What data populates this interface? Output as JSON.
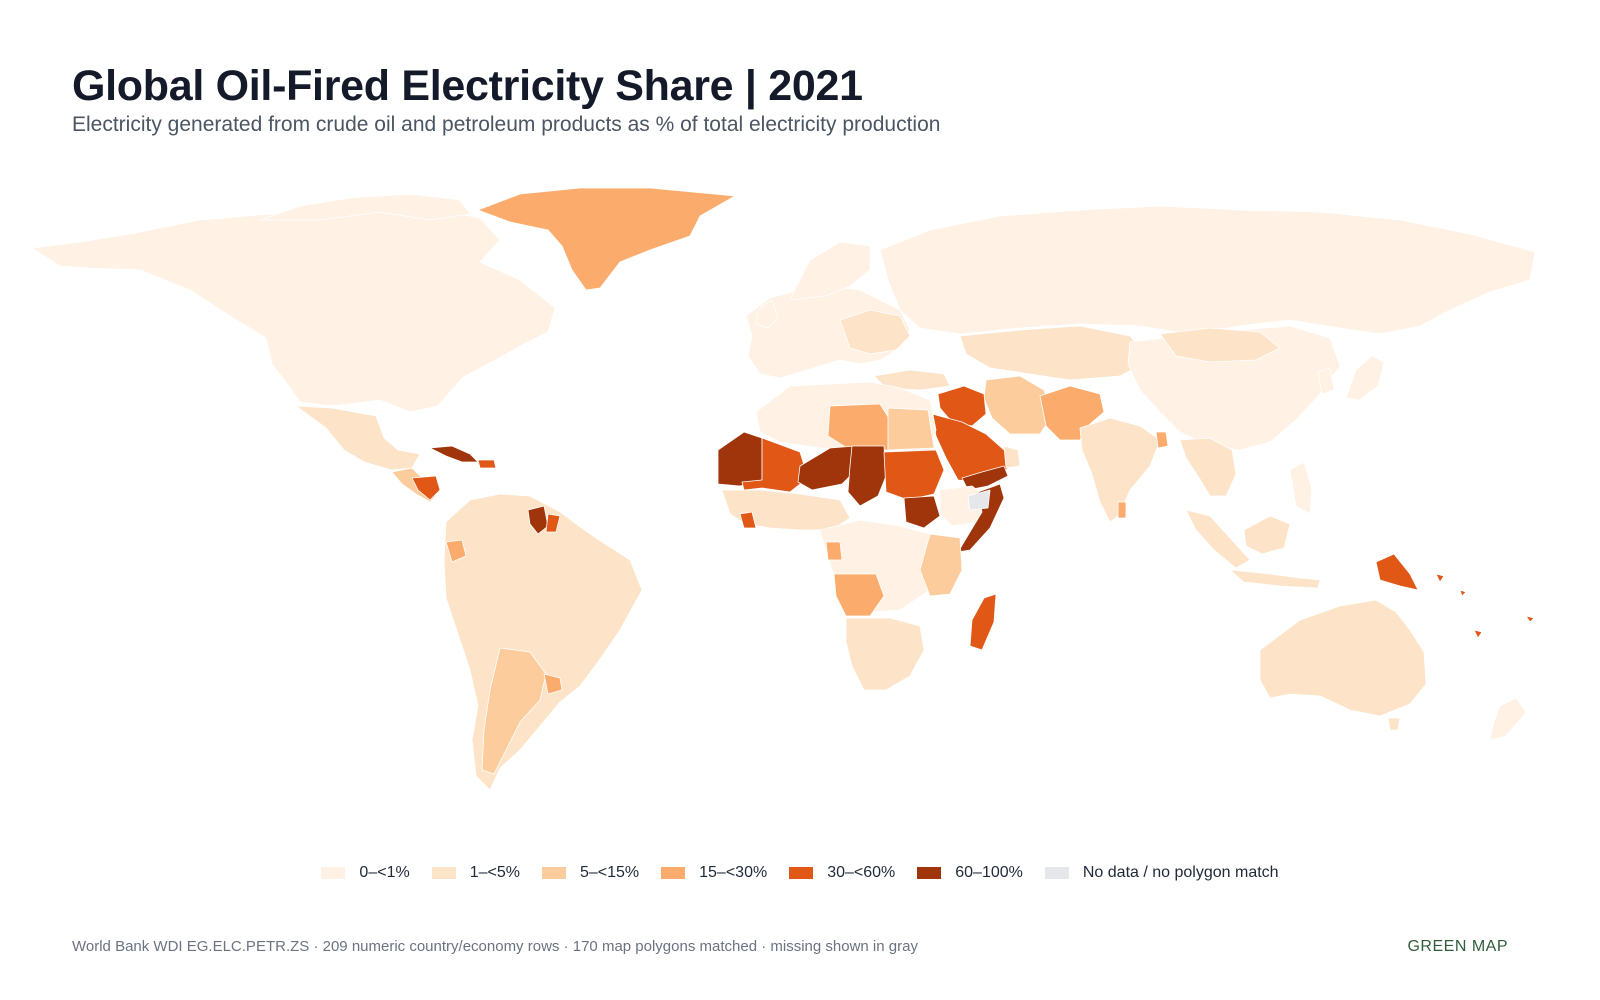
{
  "title": "Global Oil-Fired Electricity Share | 2021",
  "subtitle": "Electricity generated from crude oil and petroleum products as % of total electricity production",
  "legend": [
    {
      "label": "0–<1%",
      "color": "#fff1e4"
    },
    {
      "label": "1–<5%",
      "color": "#fde3c8"
    },
    {
      "label": "5–<15%",
      "color": "#fccc9c"
    },
    {
      "label": "15–<30%",
      "color": "#fbac6c"
    },
    {
      "label": "30–<60%",
      "color": "#e05716"
    },
    {
      "label": "60–100%",
      "color": "#a0340a"
    },
    {
      "label": "No data / no polygon match",
      "color": "#e5e7eb"
    }
  ],
  "footer": {
    "source": "World Bank WDI EG.ELC.PETR.ZS",
    "rows": "209 numeric country/economy rows",
    "matched": "170 map polygons matched",
    "missing": "missing shown in gray",
    "brand": "GREEN MAP"
  }
}
